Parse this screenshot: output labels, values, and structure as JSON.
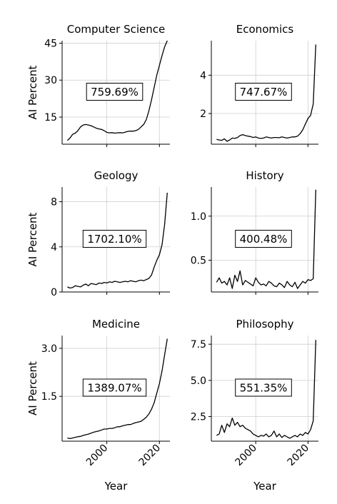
{
  "chart_data": [
    {
      "type": "line",
      "title": "Computer Science",
      "annotation": "759.69%",
      "xlabel": "",
      "ylabel": "AI Percent",
      "xlim": [
        1983,
        2024
      ],
      "ylim": [
        4,
        46
      ],
      "xticks": [
        2000,
        2020
      ],
      "yticks": [
        15,
        30,
        45
      ],
      "ytick_labels": [
        "15",
        "30",
        "45"
      ],
      "grid": true,
      "x": [
        1985,
        1986,
        1987,
        1988,
        1989,
        1990,
        1991,
        1992,
        1993,
        1994,
        1995,
        1996,
        1997,
        1998,
        1999,
        2000,
        2001,
        2002,
        2003,
        2004,
        2005,
        2006,
        2007,
        2008,
        2009,
        2010,
        2011,
        2012,
        2013,
        2014,
        2015,
        2016,
        2017,
        2018,
        2019,
        2020,
        2021,
        2022,
        2023
      ],
      "y": [
        5.5,
        6.5,
        8,
        8.5,
        9.5,
        11,
        11.8,
        12,
        11.8,
        11.5,
        11,
        10.5,
        10.2,
        10,
        9.5,
        8.8,
        8.6,
        8.7,
        8.5,
        8.6,
        8.7,
        8.6,
        8.9,
        9.2,
        9.3,
        9.3,
        9.5,
        10,
        11,
        12,
        14,
        17.5,
        22,
        27,
        32,
        36,
        40,
        43.5,
        46
      ]
    },
    {
      "type": "line",
      "title": "Economics",
      "annotation": "747.67%",
      "xlabel": "",
      "ylabel": "",
      "xlim": [
        1983,
        2024
      ],
      "ylim": [
        0.4,
        5.8
      ],
      "xticks": [
        2000,
        2020
      ],
      "yticks": [
        2,
        4
      ],
      "ytick_labels": [
        "2",
        "4"
      ],
      "grid": true,
      "x": [
        1985,
        1986,
        1987,
        1988,
        1989,
        1990,
        1991,
        1992,
        1993,
        1994,
        1995,
        1996,
        1997,
        1998,
        1999,
        2000,
        2001,
        2002,
        2003,
        2004,
        2005,
        2006,
        2007,
        2008,
        2009,
        2010,
        2011,
        2012,
        2013,
        2014,
        2015,
        2016,
        2017,
        2018,
        2019,
        2020,
        2021,
        2022,
        2023
      ],
      "y": [
        0.65,
        0.62,
        0.6,
        0.68,
        0.55,
        0.62,
        0.72,
        0.7,
        0.75,
        0.85,
        0.9,
        0.85,
        0.82,
        0.8,
        0.75,
        0.78,
        0.72,
        0.7,
        0.72,
        0.78,
        0.75,
        0.72,
        0.75,
        0.75,
        0.74,
        0.78,
        0.75,
        0.72,
        0.75,
        0.78,
        0.78,
        0.82,
        0.95,
        1.15,
        1.45,
        1.75,
        1.9,
        2.5,
        5.6
      ]
    },
    {
      "type": "line",
      "title": "Geology",
      "annotation": "1702.10%",
      "xlabel": "",
      "ylabel": "AI Percent",
      "xlim": [
        1983,
        2024
      ],
      "ylim": [
        0,
        9.3
      ],
      "xticks": [
        2000,
        2020
      ],
      "yticks": [
        0,
        4,
        8
      ],
      "ytick_labels": [
        "0",
        "4",
        "8"
      ],
      "grid": true,
      "x": [
        1985,
        1986,
        1987,
        1988,
        1989,
        1990,
        1991,
        1992,
        1993,
        1994,
        1995,
        1996,
        1997,
        1998,
        1999,
        2000,
        2001,
        2002,
        2003,
        2004,
        2005,
        2006,
        2007,
        2008,
        2009,
        2010,
        2011,
        2012,
        2013,
        2014,
        2015,
        2016,
        2017,
        2018,
        2019,
        2020,
        2021,
        2022,
        2023
      ],
      "y": [
        0.45,
        0.35,
        0.4,
        0.55,
        0.5,
        0.45,
        0.6,
        0.7,
        0.55,
        0.75,
        0.7,
        0.65,
        0.8,
        0.75,
        0.85,
        0.8,
        0.9,
        0.85,
        0.95,
        0.9,
        0.85,
        0.9,
        0.95,
        0.9,
        1.0,
        0.95,
        0.9,
        1.0,
        1.05,
        1.0,
        1.1,
        1.2,
        1.5,
        2.2,
        2.8,
        3.3,
        4.2,
        6.0,
        8.8
      ]
    },
    {
      "type": "line",
      "title": "History",
      "annotation": "400.48%",
      "xlabel": "",
      "ylabel": "",
      "xlim": [
        1983,
        2024
      ],
      "ylim": [
        0.14,
        1.33
      ],
      "xticks": [
        2000,
        2020
      ],
      "yticks": [
        0.5,
        1.0
      ],
      "ytick_labels": [
        "0.5",
        "1.0"
      ],
      "grid": true,
      "x": [
        1985,
        1986,
        1987,
        1988,
        1989,
        1990,
        1991,
        1992,
        1993,
        1994,
        1995,
        1996,
        1997,
        1998,
        1999,
        2000,
        2001,
        2002,
        2003,
        2004,
        2005,
        2006,
        2007,
        2008,
        2009,
        2010,
        2011,
        2012,
        2013,
        2014,
        2015,
        2016,
        2017,
        2018,
        2019,
        2020,
        2021,
        2022,
        2023
      ],
      "y": [
        0.25,
        0.3,
        0.24,
        0.26,
        0.22,
        0.3,
        0.18,
        0.33,
        0.26,
        0.38,
        0.22,
        0.27,
        0.25,
        0.23,
        0.21,
        0.3,
        0.25,
        0.22,
        0.23,
        0.21,
        0.26,
        0.24,
        0.21,
        0.2,
        0.24,
        0.22,
        0.19,
        0.26,
        0.22,
        0.2,
        0.25,
        0.18,
        0.22,
        0.26,
        0.24,
        0.28,
        0.27,
        0.29,
        1.3
      ]
    },
    {
      "type": "line",
      "title": "Medicine",
      "annotation": "1389.07%",
      "xlabel": "Year",
      "ylabel": "AI Percent",
      "xlim": [
        1983,
        2024
      ],
      "ylim": [
        0.1,
        3.4
      ],
      "xticks": [
        2000,
        2020
      ],
      "xtick_labels": [
        "2000",
        "2020"
      ],
      "yticks": [
        1.5,
        3.0
      ],
      "ytick_labels": [
        "1.5",
        "3.0"
      ],
      "grid": true,
      "x": [
        1985,
        1986,
        1987,
        1988,
        1989,
        1990,
        1991,
        1992,
        1993,
        1994,
        1995,
        1996,
        1997,
        1998,
        1999,
        2000,
        2001,
        2002,
        2003,
        2004,
        2005,
        2006,
        2007,
        2008,
        2009,
        2010,
        2011,
        2012,
        2013,
        2014,
        2015,
        2016,
        2017,
        2018,
        2019,
        2020,
        2021,
        2022,
        2023
      ],
      "y": [
        0.2,
        0.18,
        0.2,
        0.22,
        0.24,
        0.25,
        0.28,
        0.3,
        0.32,
        0.35,
        0.38,
        0.4,
        0.42,
        0.45,
        0.48,
        0.48,
        0.5,
        0.5,
        0.52,
        0.55,
        0.55,
        0.58,
        0.6,
        0.62,
        0.62,
        0.65,
        0.68,
        0.7,
        0.72,
        0.78,
        0.85,
        0.95,
        1.1,
        1.3,
        1.6,
        1.9,
        2.3,
        2.8,
        3.3
      ]
    },
    {
      "type": "line",
      "title": "Philosophy",
      "annotation": "551.35%",
      "xlabel": "Year",
      "ylabel": "",
      "xlim": [
        1983,
        2024
      ],
      "ylim": [
        0.8,
        8.1
      ],
      "xticks": [
        2000,
        2020
      ],
      "xtick_labels": [
        "2000",
        "2020"
      ],
      "yticks": [
        2.5,
        5.0,
        7.5
      ],
      "ytick_labels": [
        "2.5",
        "5.0",
        "7.5"
      ],
      "grid": true,
      "x": [
        1985,
        1986,
        1987,
        1988,
        1989,
        1990,
        1991,
        1992,
        1993,
        1994,
        1995,
        1996,
        1997,
        1998,
        1999,
        2000,
        2001,
        2002,
        2003,
        2004,
        2005,
        2006,
        2007,
        2008,
        2009,
        2010,
        2011,
        2012,
        2013,
        2014,
        2015,
        2016,
        2017,
        2018,
        2019,
        2020,
        2021,
        2022,
        2023
      ],
      "y": [
        1.2,
        1.3,
        1.9,
        1.4,
        2.0,
        1.8,
        2.4,
        1.9,
        2.1,
        1.8,
        1.9,
        1.7,
        1.6,
        1.5,
        1.3,
        1.2,
        1.1,
        1.2,
        1.15,
        1.3,
        1.1,
        1.2,
        1.5,
        1.1,
        1.3,
        1.05,
        1.2,
        1.1,
        1.0,
        1.1,
        1.2,
        1.1,
        1.3,
        1.2,
        1.4,
        1.3,
        1.6,
        2.2,
        7.8
      ]
    }
  ]
}
